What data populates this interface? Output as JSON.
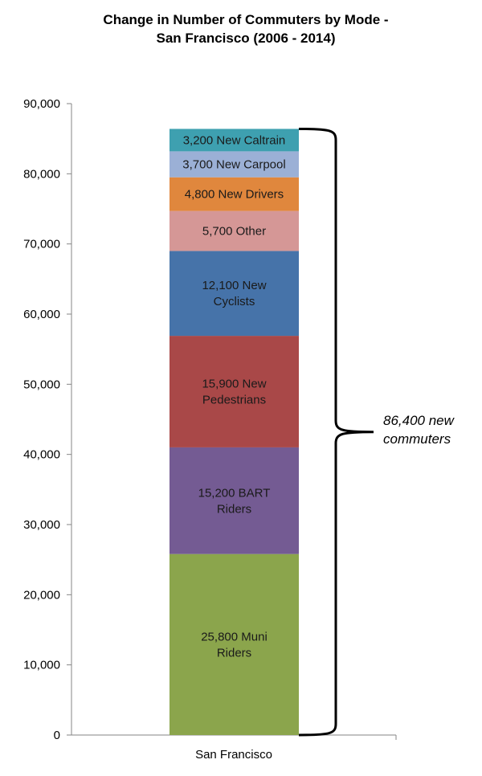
{
  "chart_data": {
    "type": "bar",
    "stacked": true,
    "title_lines": [
      "Change in Number of Commuters by Mode -",
      "San Francisco (2006 - 2014)"
    ],
    "categories": [
      "San Francisco"
    ],
    "ylim": [
      0,
      90000
    ],
    "yticks": [
      "0",
      "10,000",
      "20,000",
      "30,000",
      "40,000",
      "50,000",
      "60,000",
      "70,000",
      "80,000",
      "90,000"
    ],
    "ytick_values": [
      0,
      10000,
      20000,
      30000,
      40000,
      50000,
      60000,
      70000,
      80000,
      90000
    ],
    "series": [
      {
        "name": "Muni Riders",
        "values": [
          25800
        ],
        "color": "#8ba54c",
        "label_lines": [
          "25,800 Muni",
          "Riders"
        ]
      },
      {
        "name": "BART Riders",
        "values": [
          15200
        ],
        "color": "#745b93",
        "label_lines": [
          "15,200 BART",
          "Riders"
        ]
      },
      {
        "name": "Pedestrians",
        "values": [
          15900
        ],
        "color": "#a94848",
        "label_lines": [
          "15,900 New",
          "Pedestrians"
        ]
      },
      {
        "name": "Cyclists",
        "values": [
          12100
        ],
        "color": "#4673a9",
        "label_lines": [
          "12,100 New",
          "Cyclists"
        ]
      },
      {
        "name": "Other",
        "values": [
          5700
        ],
        "color": "#d59796",
        "label_lines": [
          "5,700 Other"
        ]
      },
      {
        "name": "Drivers",
        "values": [
          4800
        ],
        "color": "#e0873d",
        "label_lines": [
          "4,800 New Drivers"
        ]
      },
      {
        "name": "Carpool",
        "values": [
          3700
        ],
        "color": "#9bb0d6",
        "label_lines": [
          "3,700 New Carpool"
        ]
      },
      {
        "name": "Caltrain",
        "values": [
          3200
        ],
        "color": "#3ea0b0",
        "label_lines": [
          "3,200 New Caltrain"
        ]
      }
    ],
    "annotation_lines": [
      "86,400 new",
      "commuters"
    ],
    "total": 86400
  }
}
